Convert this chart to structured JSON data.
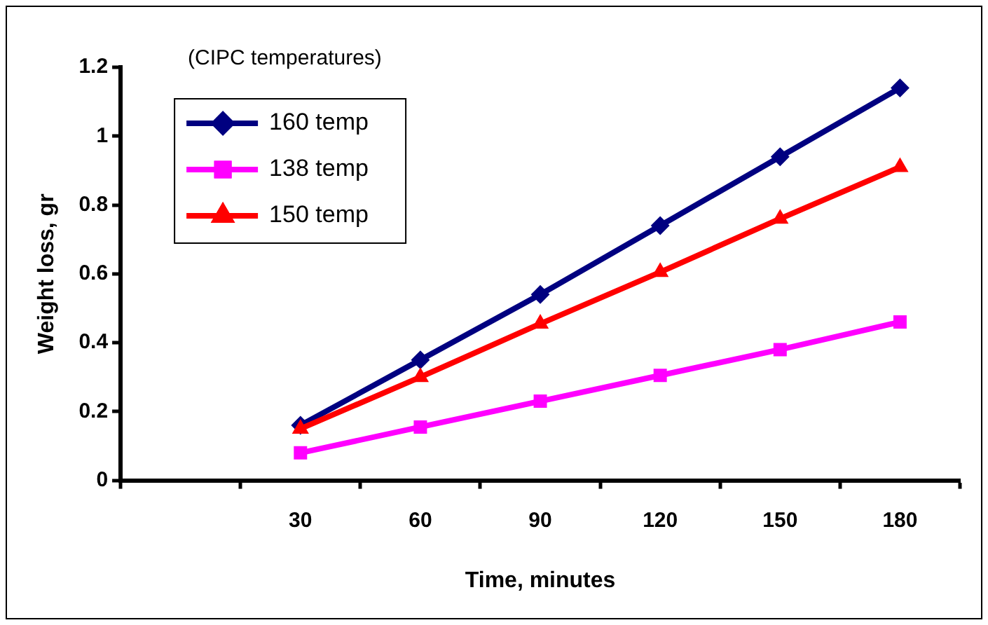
{
  "chart_data": {
    "type": "line",
    "xlabel": "Time, minutes",
    "ylabel": "Weight loss, gr",
    "legend_title": "(CIPC temperatures)",
    "categories": [
      null,
      "30",
      "60",
      "90",
      "120",
      "150",
      "180"
    ],
    "series": [
      {
        "name": "160 temp",
        "color": "#000080",
        "marker": "diamond",
        "values": [
          null,
          0.16,
          0.35,
          0.54,
          0.74,
          0.94,
          1.14
        ]
      },
      {
        "name": "138 temp",
        "color": "#ff00ff",
        "marker": "square",
        "values": [
          null,
          0.08,
          0.155,
          0.23,
          0.305,
          0.38,
          0.46
        ]
      },
      {
        "name": "150 temp",
        "color": "#ff0000",
        "marker": "triangle",
        "values": [
          null,
          0.15,
          0.3,
          0.455,
          0.605,
          0.76,
          0.91
        ]
      }
    ],
    "ylim": [
      0,
      1.2
    ],
    "yticks": [
      0,
      0.2,
      0.4,
      0.6,
      0.8,
      1,
      1.2
    ],
    "grid": false,
    "legend": "top left"
  }
}
